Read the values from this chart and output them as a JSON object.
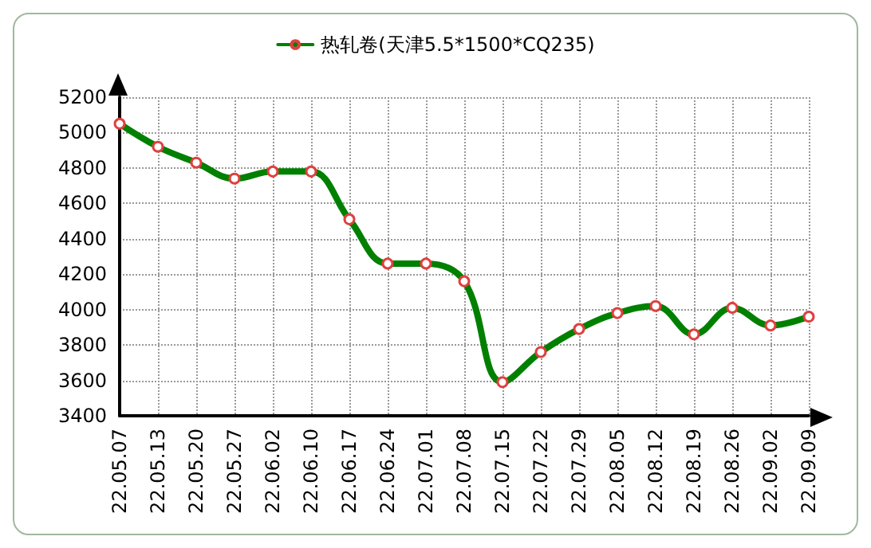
{
  "chart_data": {
    "type": "line",
    "categories": [
      "22.05.07",
      "22.05.13",
      "22.05.20",
      "22.05.27",
      "22.06.02",
      "22.06.10",
      "22.06.17",
      "22.06.24",
      "22.07.01",
      "22.07.08",
      "22.07.15",
      "22.07.22",
      "22.07.29",
      "22.08.05",
      "22.08.12",
      "22.08.19",
      "22.08.26",
      "22.09.02",
      "22.09.09"
    ],
    "series": [
      {
        "name": "热轧卷(天津5.5*1500*CQ235)",
        "color": "#008000",
        "values": [
          5050,
          4920,
          4830,
          4740,
          4780,
          4780,
          4510,
          4260,
          4260,
          4160,
          3590,
          3760,
          3890,
          3980,
          4020,
          3860,
          4010,
          3910,
          3960
        ]
      }
    ],
    "ylim": [
      3400,
      5200
    ],
    "yticks": [
      3400,
      3600,
      3800,
      4000,
      4200,
      4400,
      4600,
      4800,
      5000,
      5200
    ],
    "grid": true,
    "legend": "top",
    "marker": "circle",
    "line_style": "solid"
  }
}
